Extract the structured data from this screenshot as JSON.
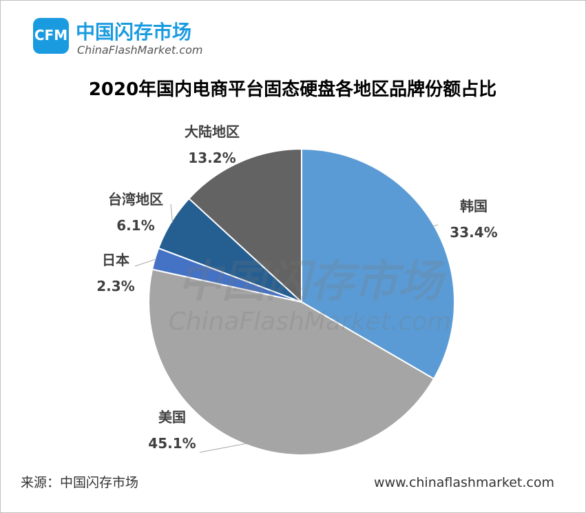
{
  "header": {
    "logo": "CFM",
    "brand": "中国闪存市场",
    "site": "ChinaFlashMarket.com"
  },
  "chart_data": {
    "type": "pie",
    "title": "2020年国内电商平台固态硬盘各地区品牌份额占比",
    "categories": [
      "韩国",
      "美国",
      "日本",
      "台湾地区",
      "大陆地区"
    ],
    "values": [
      33.4,
      45.1,
      2.3,
      6.1,
      13.2
    ],
    "value_labels": [
      "33.4%",
      "45.1%",
      "2.3%",
      "6.1%",
      "13.2%"
    ],
    "colors": [
      "#5b9bd5",
      "#a5a5a5",
      "#4472c4",
      "#255e91",
      "#636363"
    ]
  },
  "watermark": {
    "brand": "中国闪存市场",
    "site": "ChinaFlashMarket.com"
  },
  "footer": {
    "source": "来源：中国闪存市场",
    "url": "www.chinaflashmarket.com"
  }
}
